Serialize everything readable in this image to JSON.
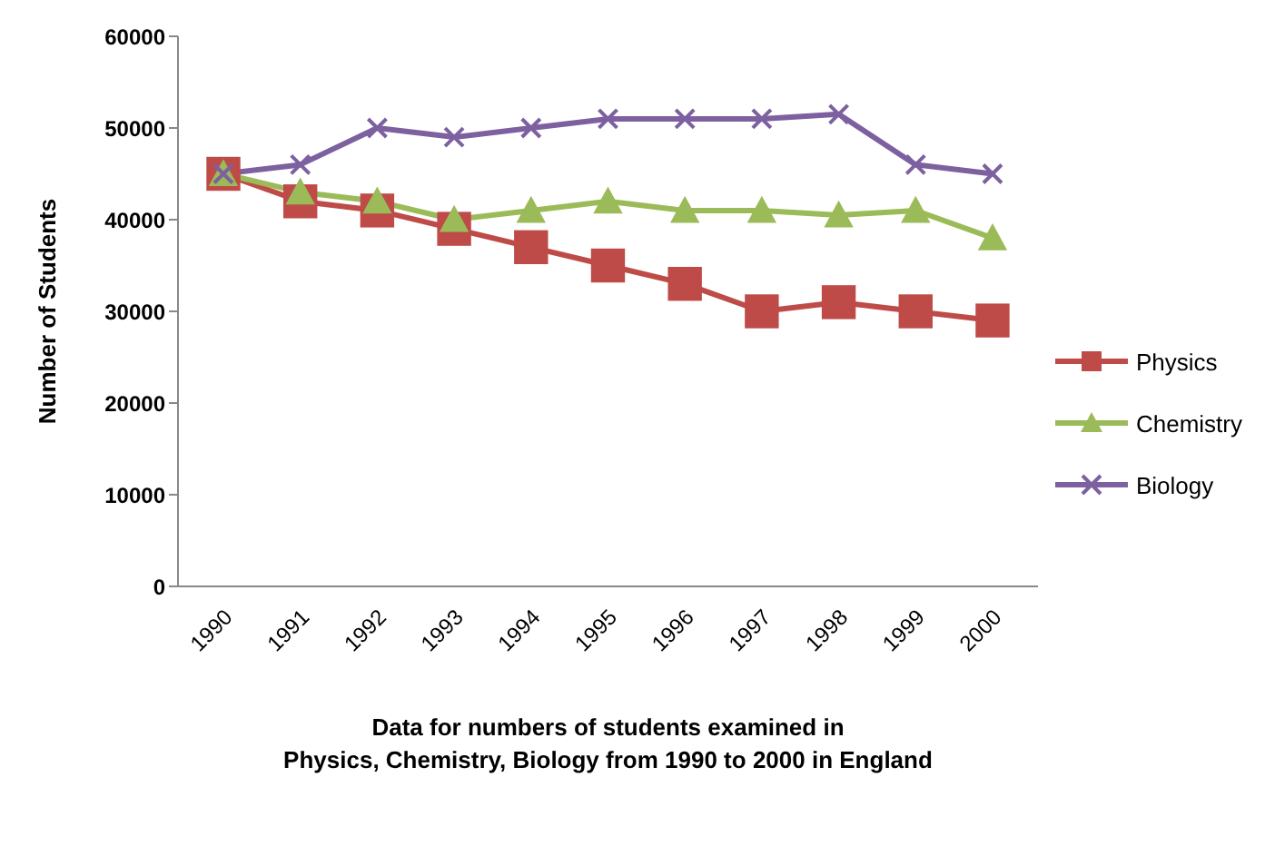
{
  "chart_data": {
    "type": "line",
    "ylabel": "Number of Students",
    "xlabel": "Data for numbers of students examined in\nPhysics, Chemistry, Biology from 1990 to 2000 in England",
    "categories": [
      "1990",
      "1991",
      "1992",
      "1993",
      "1994",
      "1995",
      "1996",
      "1997",
      "1998",
      "1999",
      "2000"
    ],
    "series": [
      {
        "name": "Physics",
        "color": "#be4b48",
        "marker": "square",
        "values": [
          45000,
          42000,
          41000,
          39000,
          37000,
          35000,
          33000,
          30000,
          31000,
          30000,
          29000
        ]
      },
      {
        "name": "Chemistry",
        "color": "#9bbb59",
        "marker": "triangle",
        "values": [
          45000,
          43000,
          42000,
          40000,
          41000,
          42000,
          41000,
          41000,
          40500,
          41000,
          38000
        ]
      },
      {
        "name": "Biology",
        "color": "#7d60a0",
        "marker": "cross",
        "values": [
          45000,
          46000,
          50000,
          49000,
          50000,
          51000,
          51000,
          51000,
          51500,
          46000,
          45000
        ]
      }
    ],
    "ylim": [
      0,
      60000
    ],
    "yticks": [
      0,
      10000,
      20000,
      30000,
      40000,
      50000,
      60000
    ],
    "grid": false,
    "legend": "right"
  }
}
